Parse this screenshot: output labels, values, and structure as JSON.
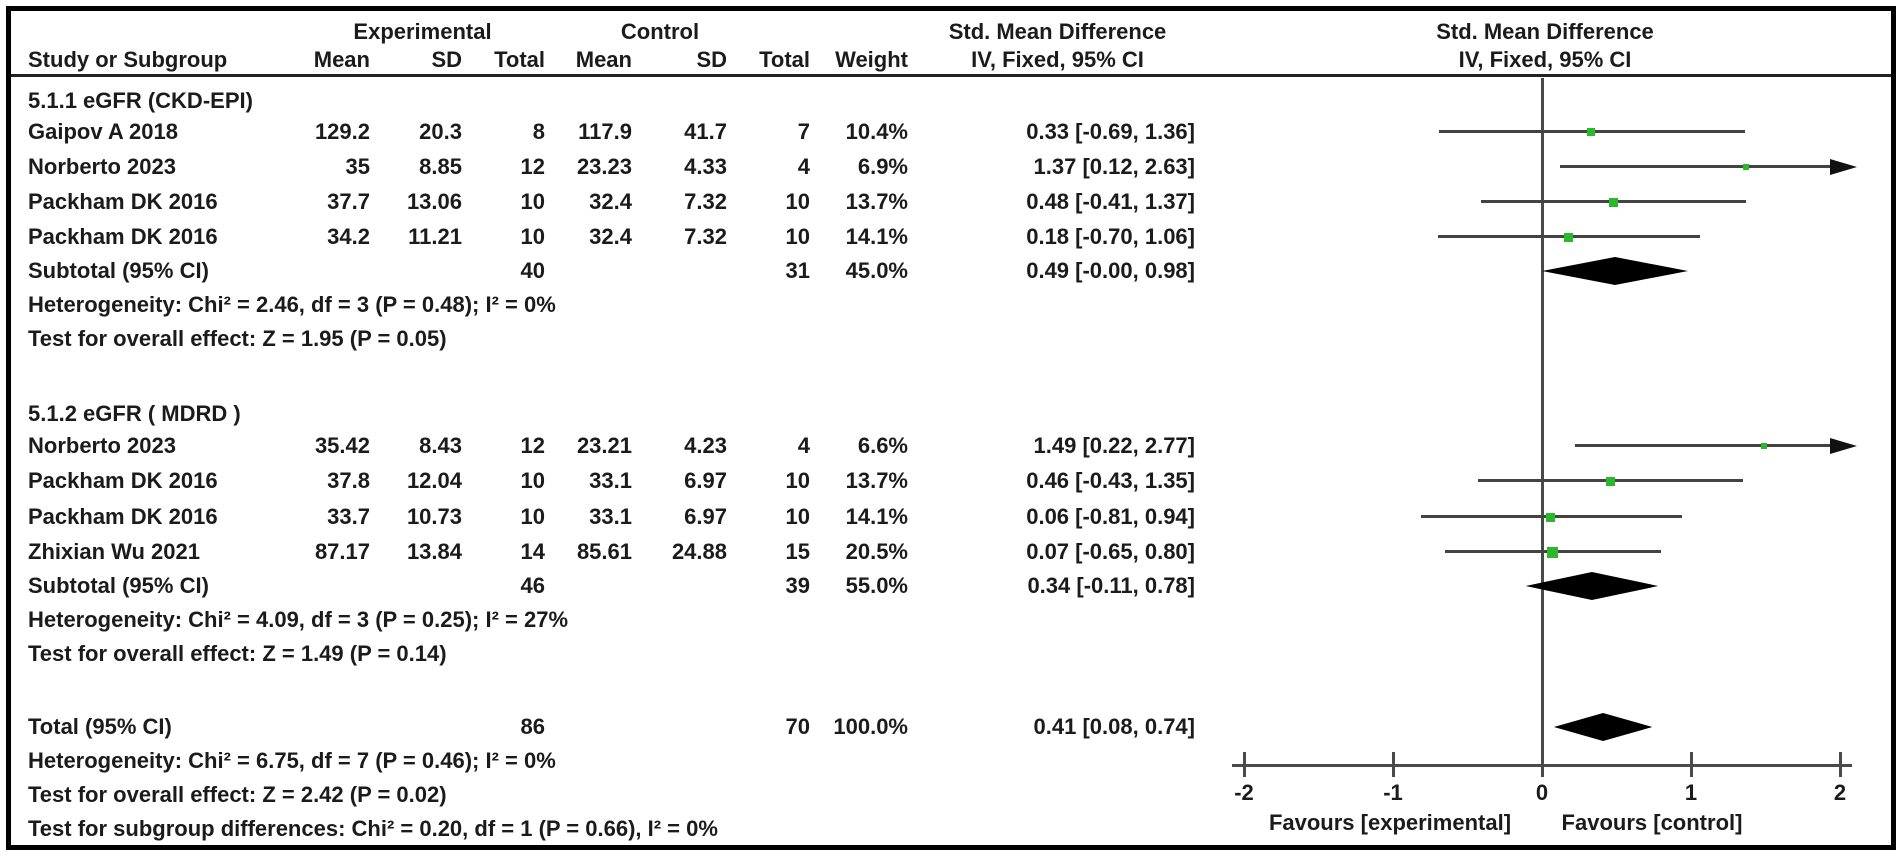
{
  "header": {
    "group_experimental": "Experimental",
    "group_control": "Control",
    "smd_col_title": "Std. Mean Difference",
    "smd_col_sub": "IV, Fixed, 95% CI",
    "plot_col_title": "Std. Mean Difference",
    "plot_col_sub": "IV, Fixed, 95% CI",
    "col_study": "Study or Subgroup",
    "col_mean_exp": "Mean",
    "col_sd_exp": "SD",
    "col_total_exp": "Total",
    "col_mean_ctl": "Mean",
    "col_sd_ctl": "SD",
    "col_total_ctl": "Total",
    "col_weight": "Weight"
  },
  "colors": {
    "marker_green": "#2bb82b",
    "line_gray": "#434343",
    "diamond_black": "#000000",
    "text": "#1b1b1b"
  },
  "chart_data": {
    "type": "forest",
    "effect_measure": "Std. Mean Difference",
    "method": "IV, Fixed, 95% CI",
    "axis": {
      "min": -2,
      "max": 2,
      "ticks": [
        -2,
        -1,
        0,
        1,
        2
      ],
      "favours_left": "Favours [experimental]",
      "favours_right": "Favours [control]"
    },
    "subgroups": [
      {
        "title": "5.1.1 eGFR (CKD-EPI)",
        "studies": [
          {
            "study": "Gaipov A 2018",
            "mean_exp": "129.2",
            "sd_exp": "20.3",
            "total_exp": "8",
            "mean_ctl": "117.9",
            "sd_ctl": "41.7",
            "total_ctl": "7",
            "weight": "10.4%",
            "weight_pct": 10.4,
            "ci_text": "0.33 [-0.69, 1.36]",
            "est": 0.33,
            "lo": -0.69,
            "hi": 1.36
          },
          {
            "study": "Norberto 2023",
            "mean_exp": "35",
            "sd_exp": "8.85",
            "total_exp": "12",
            "mean_ctl": "23.23",
            "sd_ctl": "4.33",
            "total_ctl": "4",
            "weight": "6.9%",
            "weight_pct": 6.9,
            "ci_text": "1.37 [0.12, 2.63]",
            "est": 1.37,
            "lo": 0.12,
            "hi": 2.63
          },
          {
            "study": "Packham DK 2016",
            "mean_exp": "37.7",
            "sd_exp": "13.06",
            "total_exp": "10",
            "mean_ctl": "32.4",
            "sd_ctl": "7.32",
            "total_ctl": "10",
            "weight": "13.7%",
            "weight_pct": 13.7,
            "ci_text": "0.48 [-0.41, 1.37]",
            "est": 0.48,
            "lo": -0.41,
            "hi": 1.37
          },
          {
            "study": "Packham DK 2016",
            "mean_exp": "34.2",
            "sd_exp": "11.21",
            "total_exp": "10",
            "mean_ctl": "32.4",
            "sd_ctl": "7.32",
            "total_ctl": "10",
            "weight": "14.1%",
            "weight_pct": 14.1,
            "ci_text": "0.18 [-0.70, 1.06]",
            "est": 0.18,
            "lo": -0.7,
            "hi": 1.06
          }
        ],
        "subtotal": {
          "label": "Subtotal (95% CI)",
          "total_exp": "40",
          "total_ctl": "31",
          "weight": "45.0%",
          "ci_text": "0.49 [-0.00, 0.98]",
          "est": 0.49,
          "lo": 0.0,
          "hi": 0.98
        },
        "heterogeneity": "Heterogeneity: Chi² = 2.46, df = 3 (P = 0.48); I² = 0%",
        "overall_effect": "Test for overall effect: Z = 1.95 (P = 0.05)"
      },
      {
        "title": "5.1.2 eGFR ( MDRD )",
        "studies": [
          {
            "study": "Norberto 2023",
            "mean_exp": "35.42",
            "sd_exp": "8.43",
            "total_exp": "12",
            "mean_ctl": "23.21",
            "sd_ctl": "4.23",
            "total_ctl": "4",
            "weight": "6.6%",
            "weight_pct": 6.6,
            "ci_text": "1.49 [0.22, 2.77]",
            "est": 1.49,
            "lo": 0.22,
            "hi": 2.77
          },
          {
            "study": "Packham DK 2016",
            "mean_exp": "37.8",
            "sd_exp": "12.04",
            "total_exp": "10",
            "mean_ctl": "33.1",
            "sd_ctl": "6.97",
            "total_ctl": "10",
            "weight": "13.7%",
            "weight_pct": 13.7,
            "ci_text": "0.46 [-0.43, 1.35]",
            "est": 0.46,
            "lo": -0.43,
            "hi": 1.35
          },
          {
            "study": "Packham DK 2016",
            "mean_exp": "33.7",
            "sd_exp": "10.73",
            "total_exp": "10",
            "mean_ctl": "33.1",
            "sd_ctl": "6.97",
            "total_ctl": "10",
            "weight": "14.1%",
            "weight_pct": 14.1,
            "ci_text": "0.06 [-0.81, 0.94]",
            "est": 0.06,
            "lo": -0.81,
            "hi": 0.94
          },
          {
            "study": "Zhixian Wu 2021",
            "mean_exp": "87.17",
            "sd_exp": "13.84",
            "total_exp": "14",
            "mean_ctl": "85.61",
            "sd_ctl": "24.88",
            "total_ctl": "15",
            "weight": "20.5%",
            "weight_pct": 20.5,
            "ci_text": "0.07 [-0.65, 0.80]",
            "est": 0.07,
            "lo": -0.65,
            "hi": 0.8
          }
        ],
        "subtotal": {
          "label": "Subtotal (95% CI)",
          "total_exp": "46",
          "total_ctl": "39",
          "weight": "55.0%",
          "ci_text": "0.34 [-0.11, 0.78]",
          "est": 0.34,
          "lo": -0.11,
          "hi": 0.78
        },
        "heterogeneity": "Heterogeneity: Chi² = 4.09, df = 3 (P = 0.25); I² = 27%",
        "overall_effect": "Test for overall effect: Z = 1.49 (P = 0.14)"
      }
    ],
    "total": {
      "label": "Total (95% CI)",
      "total_exp": "86",
      "total_ctl": "70",
      "weight": "100.0%",
      "ci_text": "0.41 [0.08, 0.74]",
      "est": 0.41,
      "lo": 0.08,
      "hi": 0.74
    },
    "total_footnotes": [
      "Heterogeneity: Chi² = 6.75, df = 7 (P = 0.46); I² = 0%",
      "Test for overall effect: Z = 2.42 (P = 0.02)",
      "Test for subgroup differences: Chi² = 0.20, df = 1 (P = 0.66), I² = 0%"
    ]
  }
}
